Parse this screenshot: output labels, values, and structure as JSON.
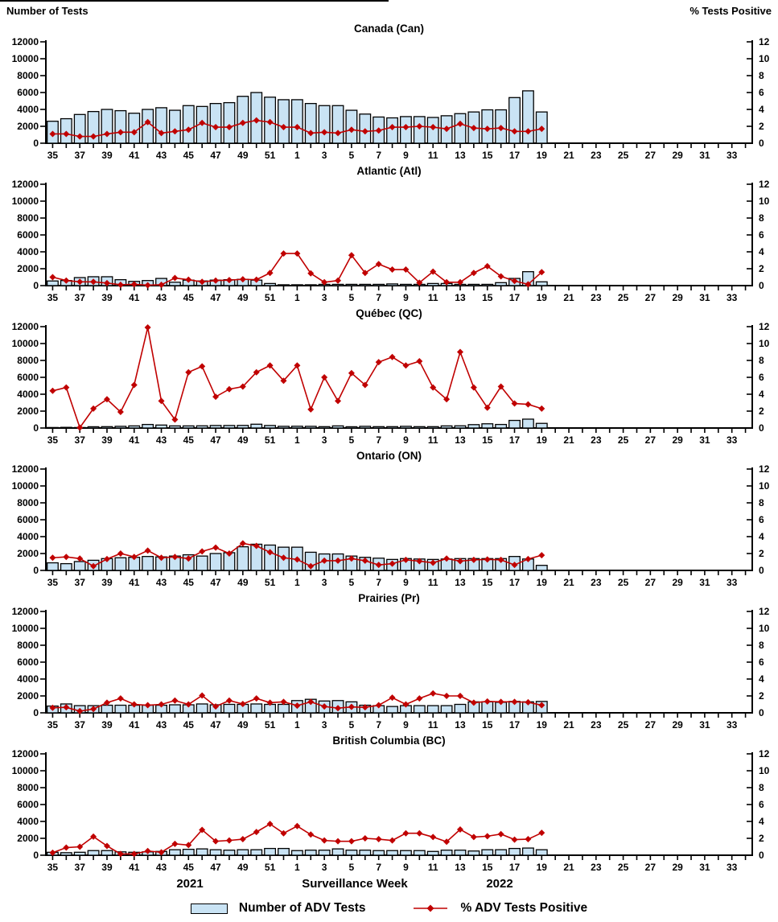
{
  "labels": {
    "left_axis_title": "Number of Tests",
    "right_axis_title": "% Tests Positive",
    "x_axis_title": "Surveillance Week",
    "year_2021": "2021",
    "year_2022": "2022"
  },
  "legend": {
    "tests_label": "Number of ADV Tests",
    "pct_label": "% ADV Tests Positive"
  },
  "colors": {
    "bar_fill": "#C9E3F4",
    "bar_stroke": "#000000",
    "line": "#C00000",
    "axis": "#000000"
  },
  "axes": {
    "left_ylim": [
      0,
      12000
    ],
    "left_ticks": [
      "0",
      "2000",
      "4000",
      "6000",
      "8000",
      "10000",
      "12000"
    ],
    "right_ylim": [
      0,
      12
    ],
    "right_ticks": [
      "0",
      "2",
      "4",
      "6",
      "8",
      "10",
      "12"
    ],
    "x_slot_count": 52,
    "x_tick_labels": [
      "35",
      "37",
      "39",
      "41",
      "43",
      "45",
      "47",
      "49",
      "51",
      "1",
      "3",
      "5",
      "7",
      "9",
      "11",
      "13",
      "15",
      "17",
      "19",
      "21",
      "23",
      "25",
      "27",
      "29",
      "31",
      "33"
    ],
    "grid": false
  },
  "chart_data": [
    {
      "type": "combo-bar-line",
      "title": "Canada (Can)",
      "weeks": [
        35,
        36,
        37,
        38,
        39,
        40,
        41,
        42,
        43,
        44,
        45,
        46,
        47,
        48,
        49,
        50,
        51,
        52,
        1,
        2,
        3,
        4,
        5,
        6,
        7,
        8,
        9,
        10,
        11,
        12,
        13,
        14,
        15,
        16,
        17,
        18,
        19
      ],
      "series": [
        {
          "name": "Number of ADV Tests",
          "axis": "left",
          "values": [
            2600,
            2900,
            3400,
            3750,
            4000,
            3850,
            3550,
            4000,
            4200,
            3900,
            4450,
            4350,
            4700,
            4800,
            5550,
            6000,
            5450,
            5150,
            5150,
            4700,
            4450,
            4450,
            3900,
            3450,
            3100,
            3000,
            3150,
            3150,
            3050,
            3250,
            3500,
            3700,
            3950,
            3950,
            5400,
            6200,
            3700
          ]
        },
        {
          "name": "% ADV Tests Positive",
          "axis": "right",
          "values": [
            1.1,
            1.1,
            0.8,
            0.8,
            1.1,
            1.3,
            1.3,
            2.5,
            1.2,
            1.4,
            1.6,
            2.4,
            1.9,
            1.9,
            2.4,
            2.7,
            2.5,
            1.9,
            1.9,
            1.2,
            1.3,
            1.2,
            1.6,
            1.4,
            1.5,
            1.9,
            1.9,
            2.0,
            1.9,
            1.7,
            2.3,
            1.8,
            1.7,
            1.8,
            1.4,
            1.4,
            1.7
          ]
        }
      ]
    },
    {
      "type": "combo-bar-line",
      "title": "Atlantic (Atl)",
      "weeks": [
        35,
        36,
        37,
        38,
        39,
        40,
        41,
        42,
        43,
        44,
        45,
        46,
        47,
        48,
        49,
        50,
        51,
        52,
        1,
        2,
        3,
        4,
        5,
        6,
        7,
        8,
        9,
        10,
        11,
        12,
        13,
        14,
        15,
        16,
        17,
        18,
        19
      ],
      "series": [
        {
          "name": "Number of ADV Tests",
          "axis": "left",
          "values": [
            550,
            600,
            950,
            1050,
            1050,
            700,
            500,
            600,
            850,
            400,
            650,
            550,
            650,
            700,
            750,
            650,
            250,
            100,
            100,
            100,
            150,
            150,
            150,
            150,
            150,
            200,
            150,
            150,
            250,
            250,
            150,
            150,
            150,
            350,
            850,
            1650,
            450
          ]
        },
        {
          "name": "% ADV Tests Positive",
          "axis": "right",
          "values": [
            1.0,
            0.6,
            0.45,
            0.45,
            0.3,
            0.1,
            0.15,
            0.05,
            0.1,
            0.9,
            0.7,
            0.45,
            0.6,
            0.65,
            0.75,
            0.7,
            1.5,
            3.8,
            3.8,
            1.45,
            0.4,
            0.6,
            3.6,
            1.5,
            2.55,
            1.9,
            1.9,
            0.35,
            1.65,
            0.4,
            0.4,
            1.5,
            2.3,
            1.1,
            0.55,
            0.15,
            1.6
          ]
        }
      ]
    },
    {
      "type": "combo-bar-line",
      "title": "Québec (QC)",
      "weeks": [
        35,
        36,
        37,
        38,
        39,
        40,
        41,
        42,
        43,
        44,
        45,
        46,
        47,
        48,
        49,
        50,
        51,
        52,
        1,
        2,
        3,
        4,
        5,
        6,
        7,
        8,
        9,
        10,
        11,
        12,
        13,
        14,
        15,
        16,
        17,
        18,
        19
      ],
      "series": [
        {
          "name": "Number of ADV Tests",
          "axis": "left",
          "values": [
            60,
            80,
            60,
            150,
            160,
            200,
            250,
            420,
            350,
            250,
            250,
            260,
            300,
            300,
            310,
            450,
            300,
            200,
            210,
            200,
            160,
            250,
            150,
            200,
            160,
            160,
            200,
            160,
            160,
            250,
            260,
            400,
            500,
            420,
            900,
            1050,
            550
          ]
        },
        {
          "name": "% ADV Tests Positive",
          "axis": "right",
          "values": [
            4.4,
            4.8,
            0.05,
            2.3,
            3.4,
            1.9,
            5.1,
            11.9,
            3.2,
            1.0,
            6.6,
            7.3,
            3.7,
            4.6,
            4.9,
            6.6,
            7.4,
            5.6,
            7.4,
            2.2,
            6.0,
            3.2,
            6.5,
            5.1,
            7.8,
            8.4,
            7.4,
            7.9,
            4.8,
            3.4,
            9.0,
            4.8,
            2.4,
            4.9,
            2.9,
            2.8,
            2.3
          ]
        }
      ]
    },
    {
      "type": "combo-bar-line",
      "title": "Ontario (ON)",
      "weeks": [
        35,
        36,
        37,
        38,
        39,
        40,
        41,
        42,
        43,
        44,
        45,
        46,
        47,
        48,
        49,
        50,
        51,
        52,
        1,
        2,
        3,
        4,
        5,
        6,
        7,
        8,
        9,
        10,
        11,
        12,
        13,
        14,
        15,
        16,
        17,
        18,
        19
      ],
      "series": [
        {
          "name": "Number of ADV Tests",
          "axis": "left",
          "values": [
            900,
            800,
            1050,
            1200,
            1400,
            1500,
            1550,
            1650,
            1600,
            1700,
            1850,
            1700,
            2000,
            2100,
            2800,
            3100,
            3000,
            2750,
            2750,
            2150,
            1950,
            1950,
            1700,
            1550,
            1450,
            1300,
            1400,
            1350,
            1300,
            1350,
            1400,
            1400,
            1400,
            1400,
            1650,
            1350,
            600
          ]
        },
        {
          "name": "% ADV Tests Positive",
          "axis": "right",
          "values": [
            1.5,
            1.6,
            1.4,
            0.5,
            1.35,
            2.0,
            1.6,
            2.35,
            1.5,
            1.6,
            1.4,
            2.25,
            2.7,
            2.0,
            3.2,
            2.9,
            2.15,
            1.5,
            1.3,
            0.5,
            1.15,
            1.15,
            1.4,
            1.15,
            0.65,
            0.8,
            1.25,
            1.1,
            0.9,
            1.4,
            1.1,
            1.25,
            1.3,
            1.25,
            0.65,
            1.35,
            1.8
          ]
        }
      ]
    },
    {
      "type": "combo-bar-line",
      "title": "Prairies (Pr)",
      "weeks": [
        35,
        36,
        37,
        38,
        39,
        40,
        41,
        42,
        43,
        44,
        45,
        46,
        47,
        48,
        49,
        50,
        51,
        52,
        1,
        2,
        3,
        4,
        5,
        6,
        7,
        8,
        9,
        10,
        11,
        12,
        13,
        14,
        15,
        16,
        17,
        18,
        19
      ],
      "series": [
        {
          "name": "Number of ADV Tests",
          "axis": "left",
          "values": [
            800,
            1050,
            850,
            850,
            900,
            900,
            900,
            900,
            900,
            950,
            950,
            1050,
            950,
            1000,
            1000,
            1050,
            1000,
            1000,
            1450,
            1600,
            1400,
            1450,
            1300,
            900,
            850,
            750,
            850,
            850,
            850,
            850,
            1000,
            1300,
            1300,
            1250,
            1350,
            1300,
            1350
          ]
        },
        {
          "name": "% ADV Tests Positive",
          "axis": "right",
          "values": [
            0.6,
            0.65,
            0.2,
            0.45,
            1.2,
            1.7,
            1.0,
            0.9,
            1.0,
            1.45,
            1.0,
            2.05,
            0.75,
            1.45,
            1.05,
            1.7,
            1.2,
            1.3,
            0.85,
            1.3,
            0.75,
            0.55,
            0.7,
            0.65,
            0.9,
            1.8,
            1.0,
            1.7,
            2.3,
            2.0,
            2.0,
            1.2,
            1.35,
            1.3,
            1.3,
            1.25,
            0.9
          ]
        }
      ]
    },
    {
      "type": "combo-bar-line",
      "title": "British Columbia (BC)",
      "weeks": [
        35,
        36,
        37,
        38,
        39,
        40,
        41,
        42,
        43,
        44,
        45,
        46,
        47,
        48,
        49,
        50,
        51,
        52,
        1,
        2,
        3,
        4,
        5,
        6,
        7,
        8,
        9,
        10,
        11,
        12,
        13,
        14,
        15,
        16,
        17,
        18,
        19
      ],
      "series": [
        {
          "name": "Number of ADV Tests",
          "axis": "left",
          "values": [
            350,
            300,
            350,
            550,
            550,
            400,
            350,
            400,
            450,
            650,
            700,
            750,
            650,
            600,
            650,
            650,
            800,
            800,
            550,
            600,
            600,
            750,
            600,
            600,
            550,
            550,
            550,
            550,
            450,
            600,
            600,
            500,
            650,
            650,
            800,
            850,
            650
          ]
        },
        {
          "name": "% ADV Tests Positive",
          "axis": "right",
          "values": [
            0.3,
            0.9,
            1.0,
            2.2,
            1.1,
            0.15,
            0.15,
            0.5,
            0.35,
            1.35,
            1.2,
            3.0,
            1.65,
            1.75,
            1.9,
            2.75,
            3.7,
            2.6,
            3.45,
            2.45,
            1.75,
            1.65,
            1.65,
            2.0,
            1.9,
            1.75,
            2.6,
            2.6,
            2.15,
            1.6,
            3.05,
            2.15,
            2.25,
            2.5,
            1.85,
            1.9,
            2.65
          ]
        }
      ]
    }
  ]
}
